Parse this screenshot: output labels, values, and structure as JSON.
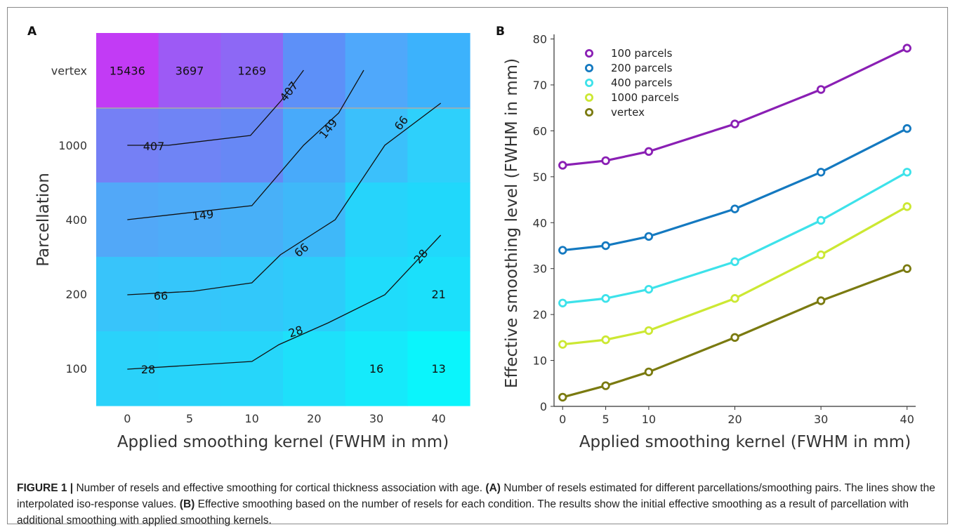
{
  "panel_a": {
    "label": "A",
    "chart_data": {
      "type": "heatmap",
      "x_categories": [
        "0",
        "5",
        "10",
        "20",
        "30",
        "40"
      ],
      "y_categories": [
        "vertex",
        "1000",
        "400",
        "200",
        "100"
      ],
      "xlabel": "Applied smoothing kernel (FWHM in mm)",
      "ylabel": "Parcellation",
      "cells": [
        {
          "row": "vertex",
          "col": "0",
          "label": "15436",
          "color": "#c23bf5"
        },
        {
          "row": "vertex",
          "col": "5",
          "label": "3697",
          "color": "#9d5af5"
        },
        {
          "row": "vertex",
          "col": "10",
          "label": "1269",
          "color": "#8d68f5"
        },
        {
          "row": "vertex",
          "col": "20",
          "label": "",
          "color": "#5d90f8"
        },
        {
          "row": "vertex",
          "col": "30",
          "label": "",
          "color": "#4fa8fb"
        },
        {
          "row": "vertex",
          "col": "40",
          "label": "",
          "color": "#3cb2fc"
        },
        {
          "row": "1000",
          "col": "0",
          "label": "",
          "color": "#7580f5"
        },
        {
          "row": "1000",
          "col": "5",
          "label": "",
          "color": "#6f84f5"
        },
        {
          "row": "1000",
          "col": "10",
          "label": "",
          "color": "#6788f5"
        },
        {
          "row": "1000",
          "col": "20",
          "label": "",
          "color": "#48aafa"
        },
        {
          "row": "1000",
          "col": "30",
          "label": "",
          "color": "#3bc0fb"
        },
        {
          "row": "1000",
          "col": "40",
          "label": "",
          "color": "#2ed0fb"
        },
        {
          "row": "400",
          "col": "0",
          "label": "",
          "color": "#52a8f8"
        },
        {
          "row": "400",
          "col": "5",
          "label": "",
          "color": "#4eacf8"
        },
        {
          "row": "400",
          "col": "10",
          "label": "",
          "color": "#48b0f8"
        },
        {
          "row": "400",
          "col": "20",
          "label": "",
          "color": "#3fb8f9"
        },
        {
          "row": "400",
          "col": "30",
          "label": "",
          "color": "#26d4fb"
        },
        {
          "row": "400",
          "col": "40",
          "label": "",
          "color": "#20d8fb"
        },
        {
          "row": "200",
          "col": "0",
          "label": "",
          "color": "#38c4fa"
        },
        {
          "row": "200",
          "col": "5",
          "label": "",
          "color": "#35c6fa"
        },
        {
          "row": "200",
          "col": "10",
          "label": "",
          "color": "#32c8fa"
        },
        {
          "row": "200",
          "col": "20",
          "label": "",
          "color": "#2ccdfa"
        },
        {
          "row": "200",
          "col": "30",
          "label": "",
          "color": "#1fdcfb"
        },
        {
          "row": "200",
          "col": "40",
          "label": "21",
          "color": "#1be0fb"
        },
        {
          "row": "100",
          "col": "0",
          "label": "",
          "color": "#2ad2fa"
        },
        {
          "row": "100",
          "col": "5",
          "label": "",
          "color": "#28d4fa"
        },
        {
          "row": "100",
          "col": "10",
          "label": "",
          "color": "#26d6fa"
        },
        {
          "row": "100",
          "col": "20",
          "label": "",
          "color": "#1ee0fa"
        },
        {
          "row": "100",
          "col": "30",
          "label": "16",
          "color": "#15eafb"
        },
        {
          "row": "100",
          "col": "40",
          "label": "13",
          "color": "#0af5fc"
        }
      ],
      "contours": [
        {
          "level": "407",
          "points": [
            [
              0,
              1000
            ],
            [
              5,
              1000
            ],
            [
              10,
              1010
            ],
            [
              14,
              "vertex-1000"
            ],
            [
              20,
              "vertex+"
            ]
          ]
        },
        {
          "level": "149",
          "points": [
            [
              0,
              400
            ],
            [
              5,
              400
            ],
            [
              10,
              420
            ],
            [
              20,
              1000
            ],
            [
              30,
              "vertex+"
            ]
          ]
        },
        {
          "level": "66",
          "points": [
            [
              0,
              200
            ],
            [
              5,
              200
            ],
            [
              10,
              220
            ],
            [
              20,
              400
            ],
            [
              30,
              1000
            ],
            [
              40,
              "1000+"
            ]
          ]
        },
        {
          "level": "28",
          "points": [
            [
              0,
              100
            ],
            [
              5,
              100
            ],
            [
              10,
              110
            ],
            [
              20,
              140
            ],
            [
              30,
              200
            ],
            [
              40,
              "200+"
            ]
          ]
        }
      ],
      "contour_labels": [
        "407",
        "149",
        "66",
        "28"
      ]
    }
  },
  "panel_b": {
    "label": "B",
    "chart_data": {
      "type": "line",
      "x": [
        0,
        5,
        10,
        20,
        30,
        40
      ],
      "xlabel": "Applied smoothing kernel (FWHM in mm)",
      "ylabel": "Effective smoothing level (FWHM in mm)",
      "xticks": [
        "0",
        "5",
        "10",
        "20",
        "30",
        "40"
      ],
      "yticks": [
        "0",
        "10",
        "20",
        "30",
        "40",
        "50",
        "60",
        "70",
        "80"
      ],
      "xlim": [
        -1,
        41
      ],
      "ylim": [
        0,
        81
      ],
      "legend_position": "top-left",
      "series": [
        {
          "name": "100 parcels",
          "color": "#8a1fb4",
          "values": [
            52.5,
            53.5,
            55.5,
            61.5,
            69.0,
            78.0
          ]
        },
        {
          "name": "200 parcels",
          "color": "#1479c0",
          "values": [
            34.0,
            35.0,
            37.0,
            43.0,
            51.0,
            60.5
          ]
        },
        {
          "name": "400 parcels",
          "color": "#3de2ea",
          "values": [
            22.5,
            23.5,
            25.5,
            31.5,
            40.5,
            51.0
          ]
        },
        {
          "name": "1000 parcels",
          "color": "#cce833",
          "values": [
            13.5,
            14.5,
            16.5,
            23.5,
            33.0,
            43.5
          ]
        },
        {
          "name": "vertex",
          "color": "#7a7a10",
          "values": [
            2.0,
            4.5,
            7.5,
            15.0,
            23.0,
            30.0
          ]
        }
      ]
    }
  },
  "caption": {
    "lead": "FIGURE 1 |",
    "t1": " Number of resels and effective smoothing for cortical thickness association with age. ",
    "a": "(A)",
    "t2": " Number of resels estimated for different parcellations/smoothing pairs. The lines show the interpolated iso-response values. ",
    "b": "(B)",
    "t3": " Effective smoothing based on the number of resels for each condition. The results show the initial effective smoothing as a result of parcellation with additional smoothing with applied smoothing kernels."
  }
}
